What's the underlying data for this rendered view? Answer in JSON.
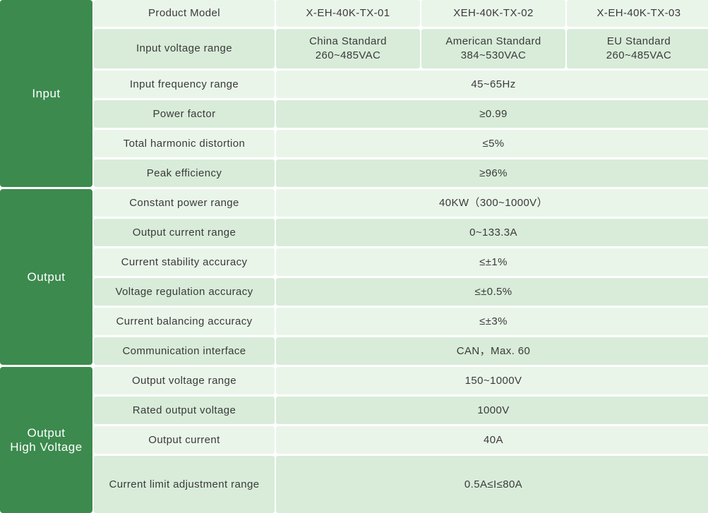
{
  "header": {
    "label": "Product Model",
    "models": [
      "X-EH-40K-TX-01",
      "XEH-40K-TX-02",
      "X-EH-40K-TX-03"
    ]
  },
  "groups": {
    "input": "Input",
    "output": "Output",
    "output_hv_line1": "Output",
    "output_hv_line2": "High Voltage"
  },
  "input_voltage": {
    "label": "Input voltage range",
    "values": [
      {
        "standard": "China Standard",
        "range": "260~485VAC"
      },
      {
        "standard": "American Standard",
        "range": "384~530VAC"
      },
      {
        "standard": "EU Standard",
        "range": "260~485VAC"
      }
    ]
  },
  "rows": [
    {
      "label": "Input frequency range",
      "value": "45~65Hz"
    },
    {
      "label": "Power factor",
      "value": "≥0.99"
    },
    {
      "label": "Total harmonic distortion",
      "value": "≤5%"
    },
    {
      "label": "Peak efficiency",
      "value": "≥96%"
    },
    {
      "label": "Constant power range",
      "value": "40KW（300~1000V）"
    },
    {
      "label": "Output current range",
      "value": "0~133.3A"
    },
    {
      "label": "Current stability accuracy",
      "value": "≤±1%"
    },
    {
      "label": "Voltage regulation accuracy",
      "value": "≤±0.5%"
    },
    {
      "label": "Current balancing accuracy",
      "value": "≤±3%"
    },
    {
      "label": "Communication interface",
      "value": "CAN，Max. 60"
    },
    {
      "label": "Output voltage range",
      "value": "150~1000V"
    },
    {
      "label": "Rated output voltage",
      "value": "1000V"
    },
    {
      "label": "Output current",
      "value": "40A"
    },
    {
      "label": "Current limit adjustment range",
      "value": "0.5A≤I≤80A"
    }
  ]
}
